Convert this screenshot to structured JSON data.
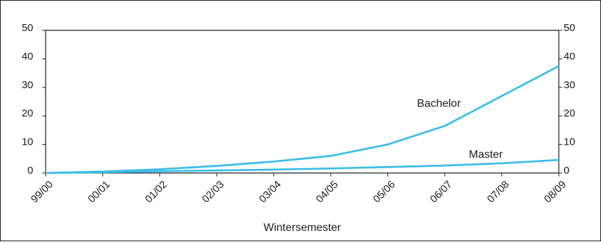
{
  "chart_data": {
    "type": "line",
    "title": "",
    "xlabel": "Wintersemester",
    "ylabel": "",
    "categories": [
      "99/00",
      "00/01",
      "01/02",
      "02/03",
      "03/04",
      "04/05",
      "05/06",
      "06/07",
      "07/08",
      "08/09"
    ],
    "ylim": [
      0,
      50
    ],
    "yticks": [
      "0",
      "10",
      "20",
      "30",
      "40",
      "50"
    ],
    "y_axis_both_sides": true,
    "grid": false,
    "legend": "inline labels",
    "series": [
      {
        "name": "Bachelor",
        "values": [
          0,
          0.5,
          1.3,
          2.5,
          4,
          6,
          10,
          16.5,
          27,
          37.5
        ],
        "color": "#3dbde8"
      },
      {
        "name": "Master",
        "values": [
          0,
          0.3,
          0.6,
          0.9,
          1.2,
          1.6,
          2.1,
          2.6,
          3.4,
          4.6
        ],
        "color": "#3dbde8"
      }
    ]
  }
}
